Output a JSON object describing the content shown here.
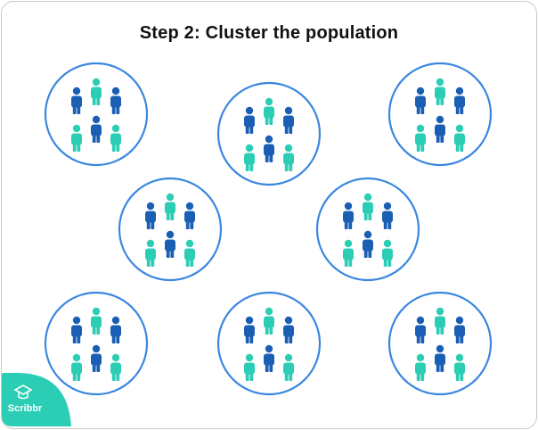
{
  "title": "Step 2: Cluster the population",
  "colors": {
    "circle": "#3a87e0",
    "person_dark": "#1a5fb4",
    "person_teal": "#2ccdb5",
    "logo_bg": "#2ccdb5",
    "border": "#c9c9c9"
  },
  "clusters": [
    {
      "people": [
        "dark",
        "teal",
        "dark",
        "teal",
        "dark",
        "teal"
      ]
    },
    {
      "people": [
        "dark",
        "teal",
        "dark",
        "teal",
        "dark",
        "teal"
      ]
    },
    {
      "people": [
        "dark",
        "teal",
        "dark",
        "teal",
        "dark",
        "teal"
      ]
    },
    {
      "people": [
        "dark",
        "teal",
        "dark",
        "teal",
        "dark",
        "teal"
      ]
    },
    {
      "people": [
        "dark",
        "teal",
        "dark",
        "teal",
        "dark",
        "teal"
      ]
    },
    {
      "people": [
        "dark",
        "teal",
        "dark",
        "teal",
        "dark",
        "teal"
      ]
    },
    {
      "people": [
        "dark",
        "teal",
        "dark",
        "teal",
        "dark",
        "teal"
      ]
    },
    {
      "people": [
        "dark",
        "teal",
        "dark",
        "teal",
        "dark",
        "teal"
      ]
    }
  ],
  "logo": {
    "label": "Scribbr",
    "icon": "graduation-cap-icon"
  }
}
